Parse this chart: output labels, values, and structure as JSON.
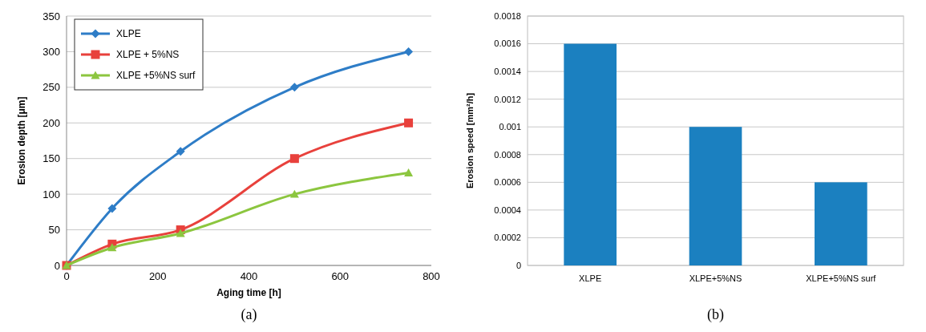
{
  "chart_data": [
    {
      "type": "line",
      "xlabel": "Aging time [h]",
      "ylabel": "Erosion depth [μm]",
      "x": [
        0,
        100,
        250,
        500,
        750
      ],
      "series": [
        {
          "name": "XLPE",
          "color": "#2e7dc7",
          "values": [
            0,
            80,
            160,
            250,
            300
          ],
          "marker": "diamond"
        },
        {
          "name": "XLPE + 5%NS",
          "color": "#e8413c",
          "values": [
            0,
            30,
            50,
            150,
            200
          ],
          "marker": "square"
        },
        {
          "name": "XLPE +5%NS surf",
          "color": "#8cc63f",
          "values": [
            0,
            25,
            45,
            100,
            130
          ],
          "marker": "triangle"
        }
      ],
      "xlim": [
        0,
        800
      ],
      "xticks": [
        0,
        200,
        400,
        600,
        800
      ],
      "ylim": [
        0,
        350
      ],
      "yticks": [
        0,
        50,
        100,
        150,
        200,
        250,
        300,
        350
      ],
      "grid": "y",
      "legend": "top left",
      "line_style": "solid",
      "annotations": [
        "(a)"
      ]
    },
    {
      "type": "bar",
      "ylabel": "Erosion speed [mm²/h]",
      "categories": [
        "XLPE",
        "XLPE+5%NS",
        "XLPE+5%NS surf"
      ],
      "values": [
        0.0016,
        0.001,
        0.0006
      ],
      "color": "#1b80c0",
      "ylim": [
        0,
        0.0018
      ],
      "yticks": [
        0,
        0.0002,
        0.0004,
        0.0006,
        0.0008,
        0.001,
        0.0012,
        0.0014,
        0.0016,
        0.0018
      ],
      "grid": "y",
      "annotations": [
        "(b)"
      ]
    }
  ]
}
